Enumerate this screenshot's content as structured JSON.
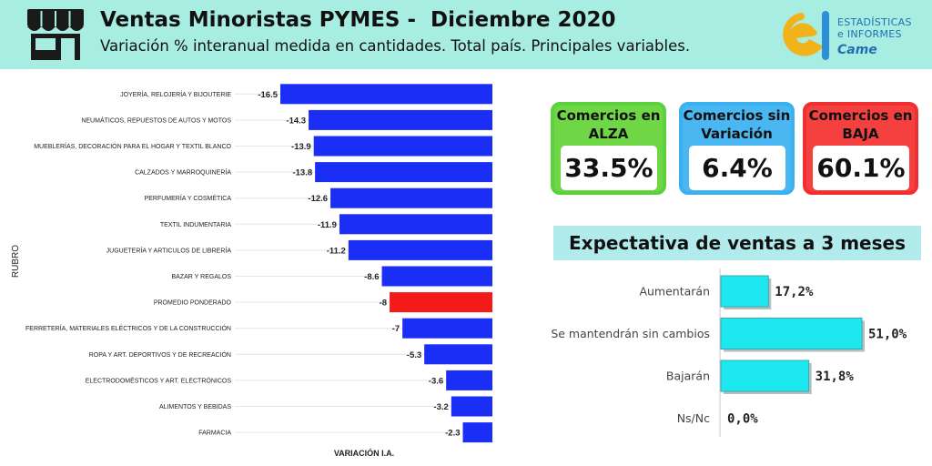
{
  "header": {
    "title": "Ventas Minoristas PYMES -  Diciembre 2020",
    "subtitle": "Variación % interanual medida en cantidades. Total país. Principales variables."
  },
  "logo": {
    "line1": "ESTADÍSTICAS",
    "line2": "e INFORMES",
    "brand": "Came"
  },
  "kpis": [
    {
      "label": "Comercios en ALZA",
      "value": "33.5%",
      "color": "#6fd645"
    },
    {
      "label": "Comercios sin Variación",
      "value": "6.4%",
      "color": "#4ab6f2"
    },
    {
      "label": "Comercios en BAJA",
      "value": "60.1%",
      "color": "#f54040"
    }
  ],
  "expectations_title": "Expectativa de ventas a 3 meses",
  "colors": {
    "main_bar": "#1a2ef5",
    "highlight_bar": "#f51a1a",
    "exp_bar": "#1de8f0",
    "header_bg": "#a8ede1"
  },
  "chart_data": [
    {
      "type": "bar",
      "orientation": "horizontal",
      "categories": [
        "JOYERÍA, RELOJERÍA Y BIJOUTERIE",
        "NEUMÁTICOS, REPUESTOS DE AUTOS Y MOTOS",
        "MUEBLERÍAS, DECORACIÓN PARA EL HOGAR Y TEXTIL BLANCO",
        "CALZADOS Y MARROQUINERÍA",
        "PERFUMERÍA Y COSMÉTICA",
        "TEXTIL INDUMENTARIA",
        "JUGUETERÍA Y ARTICULOS DE LIBRERÍA",
        "BAZAR Y REGALOS",
        "PROMEDIO PONDERADO",
        "FERRETERÍA, MATERIALES ELÉCTRICOS Y DE LA CONSTRUCCIÓN",
        "ROPA Y ART. DEPORTIVOS Y DE RECREACIÓN",
        "ELECTRODOMÉSTICOS Y ART. ELECTRÓNICOS",
        "ALIMENTOS Y BEBIDAS",
        "FARMACIA"
      ],
      "values": [
        -16.5,
        -14.3,
        -13.9,
        -13.8,
        -12.6,
        -11.9,
        -11.2,
        -8.6,
        -8,
        -7,
        -5.3,
        -3.6,
        -3.2,
        -2.3
      ],
      "value_labels": [
        "-16.5",
        "-14.3",
        "-13.9",
        "-13.8",
        "-12.6",
        "-11.9",
        "-11.2",
        "-8.6",
        "-8",
        "-7",
        "-5.3",
        "-3.6",
        "-3.2",
        "-2.3"
      ],
      "highlight_category": "PROMEDIO PONDERADO",
      "xlabel": "VARIACIÓN I.A.",
      "ylabel": "RUBRO",
      "xlim": [
        -16.5,
        0
      ]
    },
    {
      "type": "bar",
      "orientation": "horizontal",
      "title": "Expectativa de ventas a 3 meses",
      "categories": [
        "Aumentarán",
        "Se mantendrán sin cambios",
        "Bajarán",
        "Ns/Nc"
      ],
      "values": [
        17.2,
        51.0,
        31.8,
        0.0
      ],
      "value_labels": [
        "17,2%",
        "51,0%",
        "31,8%",
        "0,0%"
      ],
      "xlim": [
        0,
        51
      ]
    }
  ]
}
